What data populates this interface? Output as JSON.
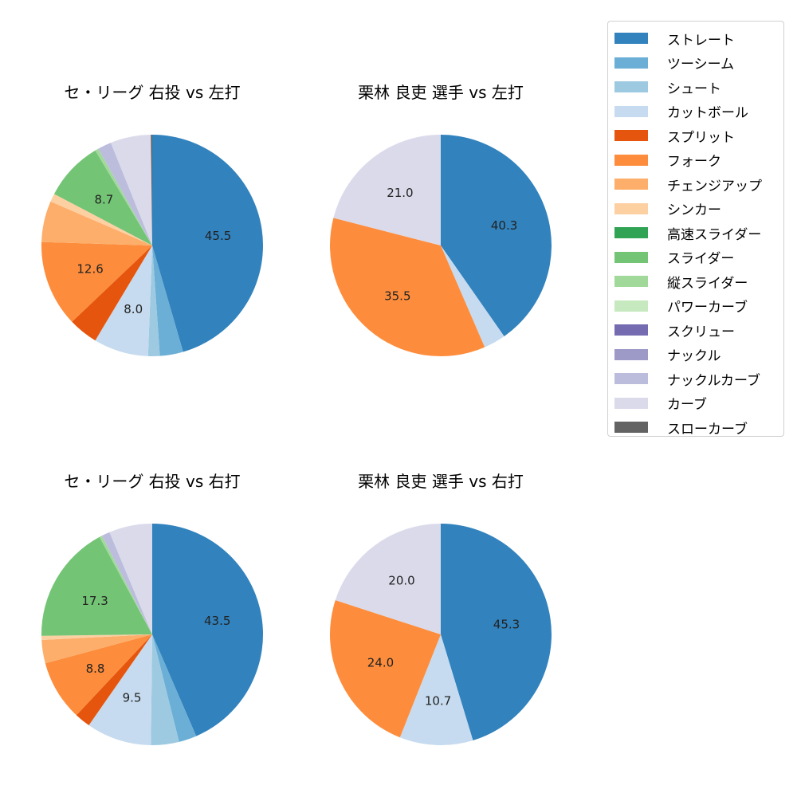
{
  "legend": {
    "items": [
      {
        "label": "ストレート",
        "color": "#3182bd"
      },
      {
        "label": "ツーシーム",
        "color": "#6baed6"
      },
      {
        "label": "シュート",
        "color": "#9ecae1"
      },
      {
        "label": "カットボール",
        "color": "#c6dbef"
      },
      {
        "label": "スプリット",
        "color": "#e6550d"
      },
      {
        "label": "フォーク",
        "color": "#fd8d3c"
      },
      {
        "label": "チェンジアップ",
        "color": "#fdae6b"
      },
      {
        "label": "シンカー",
        "color": "#fdd0a2"
      },
      {
        "label": "高速スライダー",
        "color": "#31a354"
      },
      {
        "label": "スライダー",
        "color": "#74c476"
      },
      {
        "label": "縦スライダー",
        "color": "#a1d99b"
      },
      {
        "label": "パワーカーブ",
        "color": "#c7e9c0"
      },
      {
        "label": "スクリュー",
        "color": "#756bb1"
      },
      {
        "label": "ナックル",
        "color": "#9e9ac8"
      },
      {
        "label": "ナックルカーブ",
        "color": "#bcbddc"
      },
      {
        "label": "カーブ",
        "color": "#dadaeb"
      },
      {
        "label": "スローカーブ",
        "color": "#636363"
      }
    ]
  },
  "chart_data": [
    {
      "type": "pie",
      "title": "セ・リーグ 右投 vs 左打",
      "start_angle": 90,
      "direction": "clockwise",
      "label_threshold": 7.5,
      "categories": [
        "ストレート",
        "ツーシーム",
        "シュート",
        "カットボール",
        "スプリット",
        "フォーク",
        "チェンジアップ",
        "シンカー",
        "スライダー",
        "縦スライダー",
        "ナックルカーブ",
        "カーブ",
        "スローカーブ"
      ],
      "values": [
        45.5,
        3.4,
        1.7,
        8.0,
        4.3,
        12.6,
        6.0,
        1.2,
        8.7,
        0.5,
        2.0,
        5.9,
        0.2
      ],
      "labels_shown": [
        "45.5",
        "8.0",
        "12.6",
        "8.7"
      ]
    },
    {
      "type": "pie",
      "title": "栗林 良吏 選手 vs 左打",
      "start_angle": 90,
      "direction": "clockwise",
      "label_threshold": 7.5,
      "categories": [
        "ストレート",
        "カットボール",
        "フォーク",
        "カーブ"
      ],
      "values": [
        40.3,
        3.2,
        35.5,
        21.0
      ],
      "labels_shown": [
        "40.3",
        "35.5",
        "21.0"
      ]
    },
    {
      "type": "pie",
      "title": "セ・リーグ 右投 vs 右打",
      "start_angle": 90,
      "direction": "clockwise",
      "label_threshold": 7.5,
      "categories": [
        "ストレート",
        "ツーシーム",
        "シュート",
        "カットボール",
        "スプリット",
        "フォーク",
        "チェンジアップ",
        "シンカー",
        "スライダー",
        "縦スライダー",
        "ナックルカーブ",
        "カーブ"
      ],
      "values": [
        43.5,
        2.6,
        4.1,
        9.5,
        2.3,
        8.8,
        3.4,
        0.6,
        17.3,
        0.4,
        1.2,
        6.3
      ],
      "labels_shown": [
        "43.5",
        "9.5",
        "8.8",
        "17.3"
      ]
    },
    {
      "type": "pie",
      "title": "栗林 良吏 選手 vs 右打",
      "start_angle": 90,
      "direction": "clockwise",
      "label_threshold": 7.5,
      "categories": [
        "ストレート",
        "カットボール",
        "フォーク",
        "カーブ"
      ],
      "values": [
        45.3,
        10.7,
        24.0,
        20.0
      ],
      "labels_shown": [
        "45.3",
        "10.7",
        "24.0",
        "20.0"
      ]
    }
  ]
}
